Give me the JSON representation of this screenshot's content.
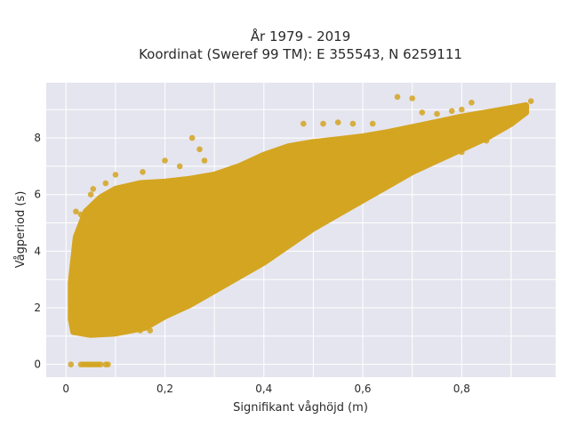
{
  "chart_data": {
    "type": "scatter",
    "title": "År 1979 - 2019",
    "subtitle": "Koordinat (Sweref 99 TM): E 355543, N 6259111",
    "xlabel": "Signifikant våghöjd (m)",
    "ylabel": "Vågperiod (s)",
    "xlim": [
      -0.04,
      0.99
    ],
    "ylim": [
      -0.45,
      9.95
    ],
    "xticks": [
      0,
      0.2,
      0.4,
      0.6,
      0.8
    ],
    "xtick_labels": [
      "0",
      "0,2",
      "0,4",
      "0,6",
      "0,8"
    ],
    "yticks": [
      0,
      2,
      4,
      6,
      8
    ],
    "ytick_labels": [
      "0",
      "2",
      "4",
      "6",
      "8"
    ],
    "grid": true,
    "background": "#e5e5ef",
    "marker_color": "#d4a520",
    "points": [
      [
        0.01,
        0.0
      ],
      [
        0.03,
        0.0
      ],
      [
        0.035,
        0.0
      ],
      [
        0.04,
        0.0
      ],
      [
        0.045,
        0.0
      ],
      [
        0.05,
        0.0
      ],
      [
        0.055,
        0.0
      ],
      [
        0.06,
        0.0
      ],
      [
        0.065,
        0.0
      ],
      [
        0.07,
        0.0
      ],
      [
        0.08,
        0.0
      ],
      [
        0.085,
        0.0
      ],
      [
        0.01,
        2.5
      ],
      [
        0.02,
        5.4
      ],
      [
        0.03,
        5.3
      ],
      [
        0.05,
        6.0
      ],
      [
        0.055,
        6.2
      ],
      [
        0.08,
        6.4
      ],
      [
        0.1,
        6.7
      ],
      [
        0.13,
        6.1
      ],
      [
        0.155,
        6.8
      ],
      [
        0.2,
        7.2
      ],
      [
        0.23,
        7.0
      ],
      [
        0.255,
        8.0
      ],
      [
        0.27,
        7.6
      ],
      [
        0.28,
        7.2
      ],
      [
        0.32,
        6.6
      ],
      [
        0.34,
        6.9
      ],
      [
        0.48,
        8.5
      ],
      [
        0.52,
        8.5
      ],
      [
        0.55,
        8.55
      ],
      [
        0.58,
        8.5
      ],
      [
        0.62,
        8.5
      ],
      [
        0.67,
        9.45
      ],
      [
        0.7,
        9.4
      ],
      [
        0.72,
        8.9
      ],
      [
        0.75,
        8.85
      ],
      [
        0.78,
        8.95
      ],
      [
        0.8,
        9.0
      ],
      [
        0.82,
        9.25
      ],
      [
        0.84,
        8.75
      ],
      [
        0.85,
        8.7
      ],
      [
        0.88,
        8.9
      ],
      [
        0.9,
        8.95
      ],
      [
        0.92,
        9.1
      ],
      [
        0.94,
        9.3
      ],
      [
        0.1,
        1.2
      ],
      [
        0.15,
        1.2
      ],
      [
        0.17,
        1.2
      ],
      [
        0.36,
        5.0
      ],
      [
        0.4,
        5.2
      ],
      [
        0.45,
        5.5
      ],
      [
        0.5,
        5.6
      ],
      [
        0.55,
        5.9
      ],
      [
        0.6,
        6.1
      ],
      [
        0.65,
        6.5
      ],
      [
        0.7,
        6.9
      ],
      [
        0.75,
        7.2
      ],
      [
        0.8,
        7.5
      ],
      [
        0.85,
        7.9
      ],
      [
        0.38,
        4.2
      ],
      [
        0.42,
        4.5
      ],
      [
        0.46,
        4.8
      ],
      [
        0.3,
        3.8
      ],
      [
        0.25,
        3.0
      ],
      [
        0.2,
        2.8
      ],
      [
        0.15,
        1.9
      ]
    ]
  }
}
